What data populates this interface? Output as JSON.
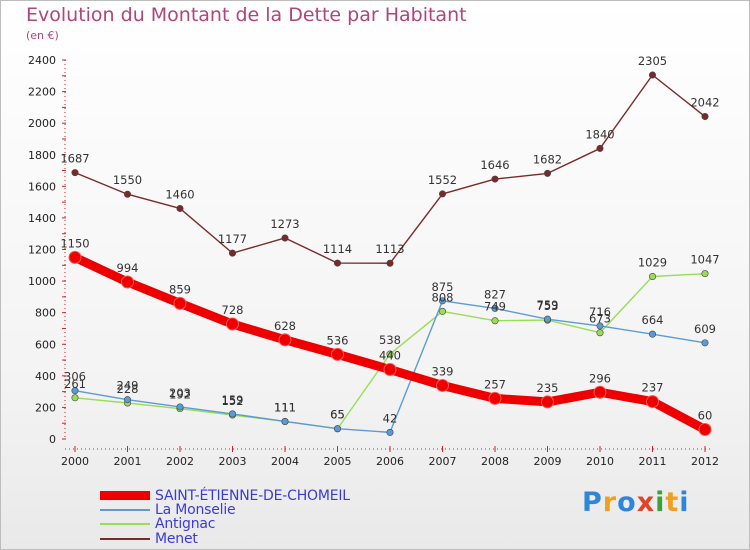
{
  "title": "Evolution du Montant de la Dette par Habitant",
  "subtitle": "(en €)",
  "logo_text": "Proxiti",
  "chart_data": {
    "type": "line",
    "x": [
      "2000",
      "2001",
      "2002",
      "2003",
      "2004",
      "2005",
      "2006",
      "2007",
      "2008",
      "2009",
      "2010",
      "2011",
      "2012"
    ],
    "ylim": [
      0,
      2400
    ],
    "yticks": [
      0,
      200,
      400,
      600,
      800,
      1000,
      1200,
      1400,
      1600,
      1800,
      2000,
      2200,
      2400
    ],
    "grid": false,
    "legend_position": "bottom-left",
    "series": [
      {
        "name": "SAINT-ÉTIENNE-DE-CHOMEIL",
        "color": "#ee0000",
        "values": [
          1150,
          994,
          859,
          728,
          628,
          536,
          440,
          339,
          257,
          235,
          296,
          237,
          60
        ]
      },
      {
        "name": "La Monselie",
        "color": "#5b9bd5",
        "values": [
          306,
          249,
          203,
          159,
          111,
          65,
          42,
          875,
          827,
          759,
          716,
          664,
          609
        ]
      },
      {
        "name": "Antignac",
        "color": "#99dd55",
        "values": [
          261,
          228,
          192,
          152,
          111,
          65,
          538,
          808,
          749,
          753,
          673,
          1029,
          1047
        ]
      },
      {
        "name": "Menet",
        "color": "#7a2a2a",
        "values": [
          1687,
          1550,
          1460,
          1177,
          1273,
          1114,
          1113,
          1552,
          1646,
          1682,
          1840,
          2305,
          2042
        ]
      }
    ]
  }
}
